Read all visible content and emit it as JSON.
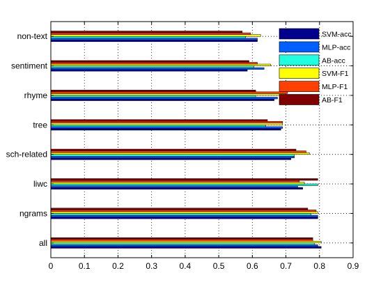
{
  "chart_data": {
    "type": "bar",
    "orientation": "horizontal",
    "categories": [
      "all",
      "ngrams",
      "liwc",
      "sch-related",
      "tree",
      "rhyme",
      "sentiment",
      "non-text"
    ],
    "xlim": [
      0,
      0.9
    ],
    "xticks": [
      "0",
      "0.1",
      "0.2",
      "0.3",
      "0.4",
      "0.5",
      "0.6",
      "0.7",
      "0.8",
      "0.9"
    ],
    "grid": true,
    "legend_position": "top-right",
    "series": [
      {
        "name": "SVM-acc",
        "color": "#00008f",
        "values": [
          0.805,
          0.795,
          0.75,
          0.715,
          0.685,
          0.665,
          0.585,
          0.615
        ]
      },
      {
        "name": "MLP-acc",
        "color": "#0060ff",
        "values": [
          0.795,
          0.795,
          0.735,
          0.725,
          0.69,
          0.675,
          0.635,
          0.615
        ]
      },
      {
        "name": "AB-acc",
        "color": "#20ffdf",
        "values": [
          0.785,
          0.775,
          0.795,
          0.725,
          0.64,
          0.61,
          0.605,
          0.58
        ]
      },
      {
        "name": "SVM-F1",
        "color": "#ffff00",
        "values": [
          0.805,
          0.795,
          0.755,
          0.77,
          0.69,
          0.7,
          0.655,
          0.625
        ]
      },
      {
        "name": "MLP-F1",
        "color": "#ff4000",
        "values": [
          0.78,
          0.79,
          0.74,
          0.76,
          0.69,
          0.705,
          0.615,
          0.595
        ]
      },
      {
        "name": "AB-F1",
        "color": "#800000",
        "values": [
          0.78,
          0.765,
          0.795,
          0.73,
          0.645,
          0.61,
          0.59,
          0.57
        ]
      }
    ]
  }
}
